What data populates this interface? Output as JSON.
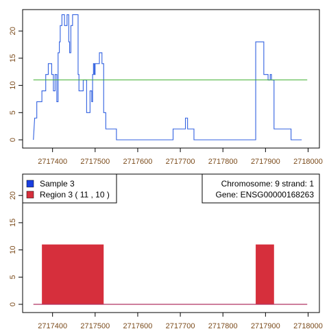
{
  "chart_data": [
    {
      "type": "line",
      "xlim": [
        2717350,
        2718000
      ],
      "ylim": [
        0,
        23
      ],
      "x_ticks": [
        "2717400",
        "2717500",
        "2717600",
        "2717700",
        "2717800",
        "2717900",
        "2718000"
      ],
      "y_ticks": [
        "0",
        "5",
        "10",
        "15",
        "20"
      ],
      "series": [
        {
          "color": "#3060e0",
          "points": [
            [
              2717355,
              0
            ],
            [
              2717358,
              4
            ],
            [
              2717363,
              4
            ],
            [
              2717363,
              7
            ],
            [
              2717375,
              7
            ],
            [
              2717375,
              9
            ],
            [
              2717384,
              9
            ],
            [
              2717384,
              12
            ],
            [
              2717390,
              12
            ],
            [
              2717390,
              14
            ],
            [
              2717398,
              14
            ],
            [
              2717398,
              12
            ],
            [
              2717402,
              12
            ],
            [
              2717402,
              9
            ],
            [
              2717406,
              9
            ],
            [
              2717406,
              12
            ],
            [
              2717410,
              12
            ],
            [
              2717410,
              7
            ],
            [
              2717413,
              7
            ],
            [
              2717413,
              16
            ],
            [
              2717416,
              16
            ],
            [
              2717416,
              18
            ],
            [
              2717418,
              18
            ],
            [
              2717418,
              21
            ],
            [
              2717422,
              21
            ],
            [
              2717422,
              23
            ],
            [
              2717428,
              23
            ],
            [
              2717428,
              21
            ],
            [
              2717434,
              21
            ],
            [
              2717434,
              23
            ],
            [
              2717438,
              23
            ],
            [
              2717438,
              18
            ],
            [
              2717440,
              18
            ],
            [
              2717440,
              16
            ],
            [
              2717443,
              16
            ],
            [
              2717443,
              21
            ],
            [
              2717447,
              21
            ],
            [
              2717447,
              23
            ],
            [
              2717460,
              23
            ],
            [
              2717460,
              12
            ],
            [
              2717462,
              12
            ],
            [
              2717462,
              9
            ],
            [
              2717472,
              9
            ],
            [
              2717472,
              11
            ],
            [
              2717480,
              11
            ],
            [
              2717480,
              5
            ],
            [
              2717488,
              5
            ],
            [
              2717488,
              9
            ],
            [
              2717492,
              9
            ],
            [
              2717492,
              7
            ],
            [
              2717494,
              7
            ],
            [
              2717494,
              12
            ],
            [
              2717496,
              12
            ],
            [
              2717496,
              14
            ],
            [
              2717498,
              14
            ],
            [
              2717498,
              12
            ],
            [
              2717500,
              12
            ],
            [
              2717500,
              14
            ],
            [
              2717510,
              14
            ],
            [
              2717510,
              16
            ],
            [
              2717516,
              16
            ],
            [
              2717516,
              14
            ],
            [
              2717520,
              14
            ],
            [
              2717520,
              5
            ],
            [
              2717525,
              5
            ],
            [
              2717525,
              2
            ],
            [
              2717550,
              2
            ],
            [
              2717550,
              0
            ],
            [
              2717683,
              0
            ],
            [
              2717683,
              2
            ],
            [
              2717712,
              2
            ],
            [
              2717712,
              4
            ],
            [
              2717717,
              4
            ],
            [
              2717717,
              2
            ],
            [
              2717732,
              2
            ],
            [
              2717732,
              0
            ],
            [
              2717877,
              0
            ],
            [
              2717877,
              18
            ],
            [
              2717896,
              18
            ],
            [
              2717896,
              12
            ],
            [
              2717906,
              12
            ],
            [
              2717906,
              11
            ],
            [
              2717911,
              11
            ],
            [
              2717911,
              12
            ],
            [
              2717914,
              12
            ],
            [
              2717914,
              11
            ],
            [
              2717920,
              11
            ],
            [
              2717920,
              2
            ],
            [
              2717960,
              2
            ],
            [
              2717960,
              0
            ],
            [
              2717985,
              0
            ]
          ]
        },
        {
          "color": "#40b030",
          "points": [
            [
              2717355,
              11
            ],
            [
              2717998,
              11
            ]
          ]
        }
      ]
    },
    {
      "type": "bar",
      "xlim": [
        2717350,
        2718000
      ],
      "ylim": [
        0,
        23
      ],
      "x_ticks": [
        "2717400",
        "2717500",
        "2717600",
        "2717700",
        "2717800",
        "2717900",
        "2718000"
      ],
      "y_ticks": [
        "0",
        "5",
        "10",
        "15",
        "20"
      ],
      "baseline": {
        "from": 2717355,
        "to": 2717998,
        "color": "#b03060"
      },
      "regions": [
        {
          "start": 2717375,
          "end": 2717520,
          "value": 11,
          "color": "#d62f3c"
        },
        {
          "start": 2717877,
          "end": 2717920,
          "value": 11,
          "color": "#d62f3c"
        }
      ],
      "legend": [
        {
          "label": "Sample 3",
          "color": "#1a3fe0"
        },
        {
          "label": "Region  3 ( 11 , 10 )",
          "color": "#d62f3c"
        }
      ],
      "info": {
        "line1": "Chromosome: 9  strand: 1",
        "line2": "Gene: ENSG00000168263"
      }
    }
  ]
}
